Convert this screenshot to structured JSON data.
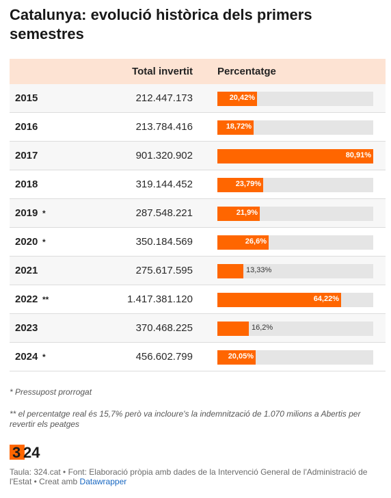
{
  "chart_data": {
    "type": "table",
    "title": "Catalunya: evolució històrica dels primers semestres",
    "columns": [
      "",
      "Total invertit",
      "Percentatge"
    ],
    "rows": [
      {
        "year": "2015",
        "mark": "",
        "total": "212.447.173",
        "pct": 20.42,
        "pct_label": "20,42%"
      },
      {
        "year": "2016",
        "mark": "",
        "total": "213.784.416",
        "pct": 18.72,
        "pct_label": "18,72%"
      },
      {
        "year": "2017",
        "mark": "",
        "total": "901.320.902",
        "pct": 80.91,
        "pct_label": "80,91%"
      },
      {
        "year": "2018",
        "mark": "",
        "total": "319.144.452",
        "pct": 23.79,
        "pct_label": "23,79%"
      },
      {
        "year": "2019",
        "mark": "*",
        "total": "287.548.221",
        "pct": 21.9,
        "pct_label": "21,9%"
      },
      {
        "year": "2020",
        "mark": "*",
        "total": "350.184.569",
        "pct": 26.6,
        "pct_label": "26,6%"
      },
      {
        "year": "2021",
        "mark": "",
        "total": "275.617.595",
        "pct": 13.33,
        "pct_label": "13,33%"
      },
      {
        "year": "2022",
        "mark": "**",
        "total": "1.417.381.120",
        "pct": 64.22,
        "pct_label": "64,22%"
      },
      {
        "year": "2023",
        "mark": "",
        "total": "370.468.225",
        "pct": 16.2,
        "pct_label": "16,2%"
      },
      {
        "year": "2024",
        "mark": "*",
        "total": "456.602.799",
        "pct": 20.05,
        "pct_label": "20,05%"
      }
    ],
    "bar_max": 80.91,
    "colors": {
      "bar": "#ff6600",
      "track": "#e5e5e5",
      "header": "#fde3d3"
    }
  },
  "notes": {
    "note1": "* Pressupost prorrogat",
    "note2": "** el percentatge real és 15,7% però va incloure's la indemnització de 1.070 milions a Abertis per revertir els peatges"
  },
  "logo": {
    "text_a": "3",
    "text_b": "24"
  },
  "footer": {
    "source": "Taula: 324.cat • Font: Elaboració pròpia amb dades de la Intervenció General de l'Administració de l'Estat • Creat amb ",
    "link": "Datawrapper"
  }
}
